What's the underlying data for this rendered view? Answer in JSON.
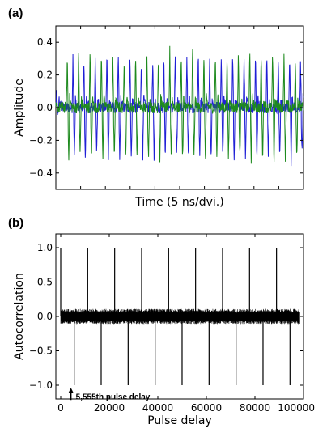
{
  "chart_data": [
    {
      "panel": "(a)",
      "type": "line",
      "xlabel": "Time (5 ns/dvi.)",
      "ylabel": "Amplitude",
      "ylim": [
        -0.5,
        0.5
      ],
      "yticks": [
        -0.4,
        -0.2,
        0.0,
        0.2,
        0.4
      ],
      "ytick_labels": [
        "−0.4",
        "−0.2",
        "0.0",
        "0.2",
        "0.4"
      ],
      "xticks_labeled": false,
      "grid": false,
      "series": [
        {
          "color": "#1f1fd6",
          "pulse_x": [
            0.005,
            0.071,
            0.115,
            0.161,
            0.208,
            0.254,
            0.301,
            0.347,
            0.393,
            0.438,
            0.484,
            0.531,
            0.577,
            0.623,
            0.67,
            0.716,
            0.762,
            0.808,
            0.854,
            0.9,
            0.946,
            0.99
          ],
          "pulse_peak": [
            0.08,
            0.33,
            0.31,
            0.33,
            0.34,
            0.33,
            0.32,
            0.31,
            0.3,
            0.33,
            0.34,
            0.33,
            0.32,
            0.33,
            0.31,
            0.34,
            0.32,
            0.33,
            0.33,
            0.31,
            0.32,
            0.28
          ],
          "pulse_trough": [
            -0.05,
            -0.31,
            -0.33,
            -0.3,
            -0.32,
            -0.34,
            -0.32,
            -0.31,
            -0.33,
            -0.3,
            -0.32,
            -0.33,
            -0.31,
            -0.32,
            -0.33,
            -0.36,
            -0.34,
            -0.32,
            -0.33,
            -0.31,
            -0.33,
            -0.3
          ]
        },
        {
          "color": "#1e8a1e",
          "pulse_x": [
            0.048,
            0.094,
            0.14,
            0.186,
            0.232,
            0.278,
            0.324,
            0.37,
            0.416,
            0.462,
            0.508,
            0.554,
            0.6,
            0.646,
            0.693,
            0.739,
            0.785,
            0.831,
            0.877,
            0.923,
            0.969
          ],
          "pulse_peak": [
            0.32,
            0.34,
            0.33,
            0.35,
            0.32,
            0.33,
            0.34,
            0.32,
            0.33,
            0.35,
            0.34,
            0.36,
            0.33,
            0.34,
            0.32,
            0.33,
            0.35,
            0.33,
            0.34,
            0.32,
            0.33
          ],
          "pulse_trough": [
            -0.32,
            -0.3,
            -0.33,
            -0.31,
            -0.32,
            -0.33,
            -0.31,
            -0.32,
            -0.34,
            -0.31,
            -0.33,
            -0.32,
            -0.35,
            -0.31,
            -0.32,
            -0.33,
            -0.32,
            -0.31,
            -0.33,
            -0.32,
            -0.3
          ]
        }
      ]
    },
    {
      "panel": "(b)",
      "type": "line",
      "xlabel": "Pulse delay",
      "ylabel": "Autocorrelation",
      "xlim": [
        -2000,
        100000
      ],
      "ylim": [
        -1.2,
        1.2
      ],
      "xticks": [
        0,
        20000,
        40000,
        60000,
        80000,
        100000
      ],
      "xtick_labels": [
        "0",
        "20000",
        "40000",
        "60000",
        "80000",
        "100000"
      ],
      "yticks": [
        -1.0,
        -0.5,
        0.0,
        0.5,
        1.0
      ],
      "ytick_labels": [
        "−1.0",
        "−0.5",
        "0.0",
        "0.5",
        "1.0"
      ],
      "grid": false,
      "series": [
        {
          "color": "#000000",
          "noise_band": [
            -0.11,
            0.11
          ],
          "positive_peaks_x": [
            0,
            11110,
            22220,
            33330,
            44440,
            55550,
            66660,
            77770,
            88880
          ],
          "positive_peaks_y": [
            1.0,
            1.0,
            1.0,
            1.0,
            1.0,
            1.0,
            1.0,
            1.0,
            1.0
          ],
          "negative_peaks_x": [
            5555,
            16665,
            27775,
            38885,
            49995,
            61105,
            72215,
            83325,
            94435
          ],
          "negative_peaks_y": [
            -1.0,
            -1.0,
            -1.0,
            -1.0,
            -1.0,
            -1.0,
            -1.0,
            -1.0,
            -1.0
          ]
        }
      ],
      "annotation": {
        "text": "5,555th pulse delay",
        "x": 5555,
        "y": -1.05
      }
    }
  ]
}
